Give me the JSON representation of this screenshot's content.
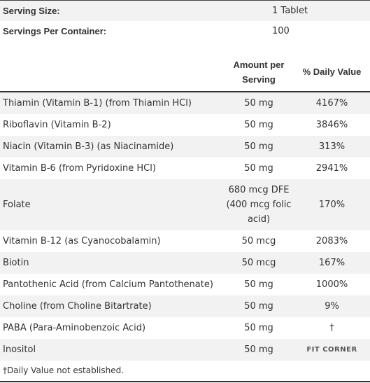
{
  "serving": [
    {
      "label": "Serving Size:",
      "value": "1 Tablet"
    },
    {
      "label": "Servings Per Container:",
      "value": "100"
    }
  ],
  "table": {
    "header": {
      "amount": "Amount per Serving",
      "daily_value": "% Daily Value"
    },
    "rows": [
      {
        "name": "Thiamin (Vitamin B-1) (from Thiamin HCl)",
        "amount": "50 mg",
        "daily_value": "4167%"
      },
      {
        "name": "Riboflavin (Vitamin B-2)",
        "amount": "50 mg",
        "daily_value": "3846%"
      },
      {
        "name": "Niacin (Vitamin B-3) (as Niacinamide)",
        "amount": "50 mg",
        "daily_value": "313%"
      },
      {
        "name": "Vitamin B-6 (from Pyridoxine HCl)",
        "amount": "50 mg",
        "daily_value": "2941%"
      },
      {
        "name": "Folate",
        "amount": "680 mcg DFE (400 mcg folic acid)",
        "daily_value": "170%"
      },
      {
        "name": "Vitamin B-12 (as Cyanocobalamin)",
        "amount": "50 mcg",
        "daily_value": "2083%"
      },
      {
        "name": "Biotin",
        "amount": "50 mcg",
        "daily_value": "167%"
      },
      {
        "name": "Pantothenic Acid (from Calcium Pantothenate)",
        "amount": "50 mg",
        "daily_value": "1000%"
      },
      {
        "name": "Choline (from Choline Bitartrate)",
        "amount": "50 mg",
        "daily_value": "9%"
      },
      {
        "name": "PABA (Para-Aminobenzoic Acid)",
        "amount": "50 mg",
        "daily_value": "†"
      },
      {
        "name": "Inositol",
        "amount": "50 mg"
      }
    ],
    "footnote": "†Daily Value not established."
  },
  "watermark": "FIT CORNER"
}
